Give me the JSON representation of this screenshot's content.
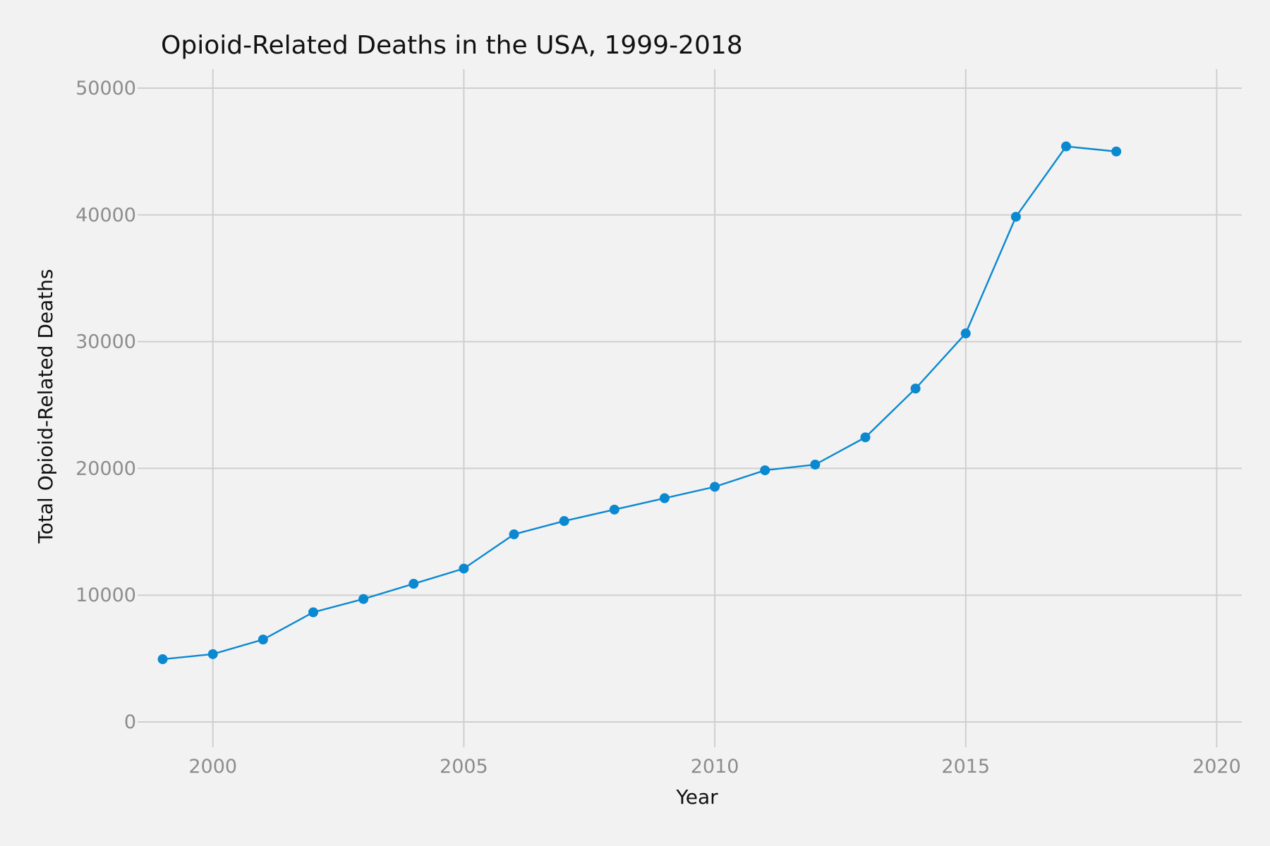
{
  "chart_data": {
    "type": "line",
    "title": "Opioid-Related Deaths in the USA, 1999-2018",
    "xlabel": "Year",
    "ylabel": "Total Opioid-Related Deaths",
    "xlim": [
      1998.5,
      2020.5
    ],
    "ylim": [
      -2000,
      51500
    ],
    "x_ticks": [
      2000,
      2005,
      2010,
      2015,
      2020
    ],
    "y_ticks": [
      0,
      10000,
      20000,
      30000,
      40000,
      50000
    ],
    "grid": true,
    "legend": "none",
    "series": [
      {
        "color": "#0a89d1",
        "x": [
          1999,
          2000,
          2001,
          2002,
          2003,
          2004,
          2005,
          2006,
          2007,
          2008,
          2009,
          2010,
          2011,
          2012,
          2013,
          2014,
          2015,
          2016,
          2017,
          2018
        ],
        "y": [
          4950,
          5350,
          6500,
          8650,
          9700,
          10900,
          12100,
          14800,
          15850,
          16750,
          17650,
          18550,
          19850,
          20300,
          22450,
          26300,
          30650,
          39850,
          45400,
          45000
        ]
      }
    ]
  }
}
